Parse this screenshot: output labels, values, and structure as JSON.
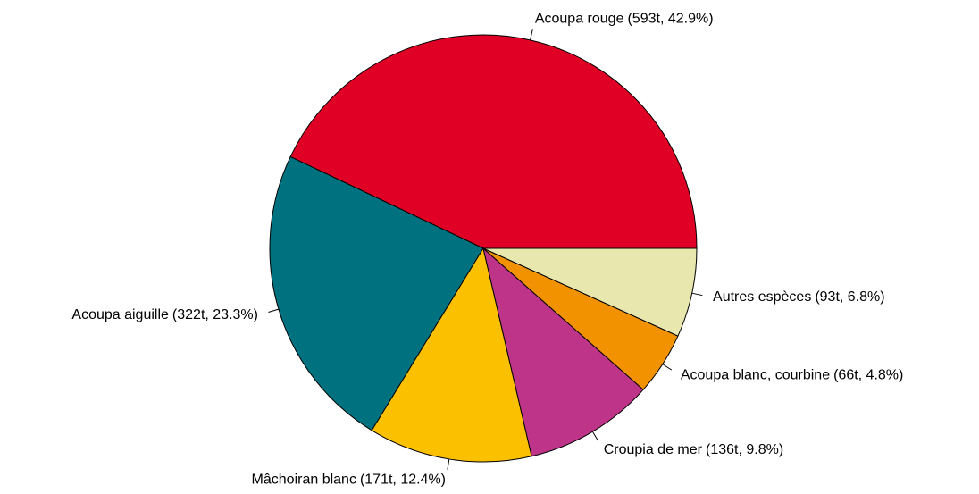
{
  "chart_data": {
    "type": "pie",
    "categories": [
      "Acoupa rouge",
      "Acoupa aiguille",
      "Mâchoiran blanc",
      "Croupia de mer",
      "Acoupa blanc, courbine",
      "Autres espèces"
    ],
    "values": [
      593,
      322,
      171,
      136,
      66,
      93
    ],
    "value_labels": [
      "(593t, 42.9%)",
      "(322t, 23.3%)",
      "(171t, 12.4%)",
      "(136t, 9.8%)",
      "(66t, 4.8%)",
      "(93t, 6.8%)"
    ],
    "colors": [
      "#E00025",
      "#00717E",
      "#FBC000",
      "#BE3488",
      "#F39200",
      "#E8E8AE"
    ]
  }
}
